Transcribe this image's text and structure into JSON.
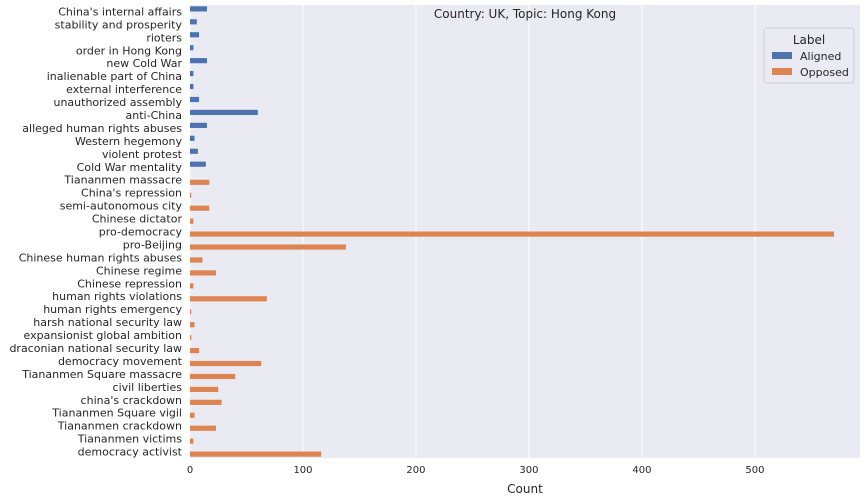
{
  "chart_data": {
    "type": "bar",
    "orientation": "horizontal",
    "title": "Country: UK, Topic: Hong Kong",
    "xlabel": "Count",
    "ylabel": "",
    "xlim": [
      0,
      593
    ],
    "xticks": [
      0,
      100,
      200,
      300,
      400,
      500
    ],
    "grid": true,
    "legend": {
      "title": "Label",
      "placement": "top-right"
    },
    "categories": [
      "China's internal affairs",
      "stability and prosperity",
      "rioters",
      "order in Hong Kong",
      "new Cold War",
      "inalienable part of China",
      "external interference",
      "unauthorized assembly",
      "anti-China",
      "alleged human rights abuses",
      "Western hegemony",
      "violent protest",
      "Cold War mentality",
      "Tiananmen massacre",
      "China's repression",
      "semi-autonomous city",
      "Chinese dictator",
      "pro-democracy",
      "pro-Beijing",
      "Chinese human rights abuses",
      "Chinese regime",
      "Chinese repression",
      "human rights violations",
      "human rights emergency",
      "harsh national security law",
      "expansionist global ambition",
      "draconian national security law",
      "democracy movement",
      "Tiananmen Square massacre",
      "civil liberties",
      "china's crackdown",
      "Tiananmen Square vigil",
      "Tiananmen crackdown",
      "Tiananmen victims",
      "democracy activist"
    ],
    "series": [
      {
        "name": "Aligned",
        "color": "#4c72b0",
        "values": [
          15,
          6,
          8,
          3,
          15,
          3,
          3,
          8,
          60,
          15,
          4,
          7,
          14,
          0,
          0,
          0,
          0,
          0,
          0,
          0,
          0,
          0,
          0,
          0,
          0,
          0,
          0,
          0,
          0,
          0,
          0,
          0,
          0,
          0,
          0
        ]
      },
      {
        "name": "Opposed",
        "color": "#dd8452",
        "values": [
          0,
          0,
          0,
          0,
          0,
          0,
          0,
          0,
          0,
          0,
          0,
          0,
          0,
          17,
          1,
          17,
          3,
          570,
          138,
          11,
          23,
          3,
          68,
          1,
          4,
          1,
          8,
          63,
          40,
          25,
          28,
          4,
          23,
          3,
          116
        ]
      }
    ]
  }
}
